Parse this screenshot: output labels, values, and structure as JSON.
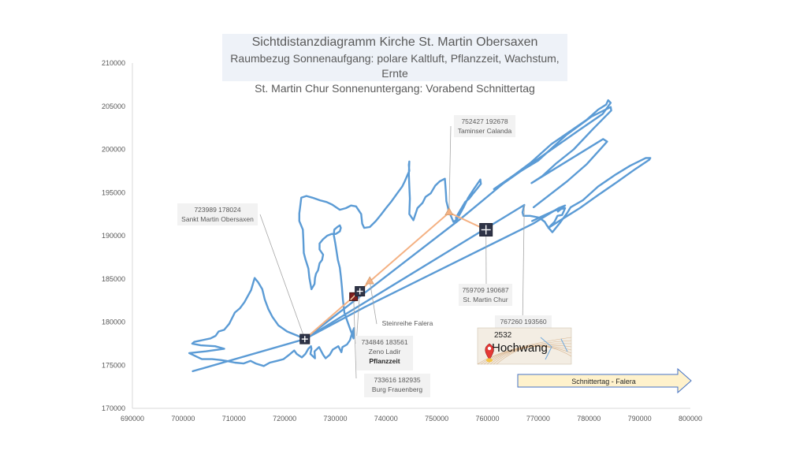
{
  "chart_data": {
    "type": "scatter",
    "title": "Sichtdistanzdiagramm Kirche St. Martin Obersaxen",
    "subtitle_lines": [
      "Raumbezug Sonnenaufgang: polare Kaltluft, Pflanzzeit, Wachstum, Ernte",
      "St. Martin Chur Sonnenuntergang: Vorabend Schnittertag"
    ],
    "xlabel": "",
    "ylabel": "",
    "xlim": [
      690000,
      800000
    ],
    "ylim": [
      170000,
      210000
    ],
    "x_ticks": [
      690000,
      700000,
      710000,
      720000,
      730000,
      740000,
      750000,
      760000,
      770000,
      780000,
      790000,
      800000
    ],
    "y_ticks": [
      170000,
      175000,
      180000,
      185000,
      190000,
      195000,
      200000,
      205000,
      210000
    ],
    "x_tick_labels": [
      "690000",
      "700000",
      "710000",
      "720000",
      "730000",
      "740000",
      "750000",
      "760000",
      "770000",
      "780000",
      "790000",
      "800000"
    ],
    "y_tick_labels": [
      "170000",
      "175000",
      "180000",
      "185000",
      "190000",
      "195000",
      "200000",
      "205000",
      "210000"
    ],
    "grid": false,
    "colors": {
      "horizon": "#5b9bd5",
      "route": "#f4b183",
      "axis": "#d9d9d9",
      "text": "#595959",
      "arrow_fill": "#fff2cc",
      "arrow_stroke": "#4472c4"
    },
    "series": [
      {
        "kind": "horizon-outline",
        "points": [
          [
            723989,
            178024
          ],
          [
            722600,
            178400
          ],
          [
            720500,
            178900
          ],
          [
            718800,
            179600
          ],
          [
            717600,
            180600
          ],
          [
            716800,
            181500
          ],
          [
            716100,
            182600
          ],
          [
            715600,
            183800
          ],
          [
            714800,
            184600
          ],
          [
            714100,
            185100
          ],
          [
            713400,
            183700
          ],
          [
            712100,
            182300
          ],
          [
            711200,
            181600
          ],
          [
            710200,
            181100
          ],
          [
            709100,
            179800
          ],
          [
            708100,
            179100
          ],
          [
            707000,
            178900
          ],
          [
            706400,
            178400
          ],
          [
            705400,
            178100
          ],
          [
            703800,
            177900
          ],
          [
            702200,
            177700
          ],
          [
            701800,
            177500
          ],
          [
            703500,
            177300
          ],
          [
            706300,
            177200
          ],
          [
            708100,
            176900
          ],
          [
            704500,
            176600
          ],
          [
            701200,
            176400
          ],
          [
            703700,
            175700
          ],
          [
            705700,
            175700
          ],
          [
            707400,
            175600
          ],
          [
            708500,
            175500
          ],
          [
            710200,
            175300
          ],
          [
            711900,
            175200
          ],
          [
            713300,
            175500
          ],
          [
            714300,
            175200
          ],
          [
            715900,
            174900
          ],
          [
            717100,
            175300
          ],
          [
            718500,
            175500
          ],
          [
            719800,
            175700
          ],
          [
            720900,
            176200
          ],
          [
            721900,
            176700
          ],
          [
            722400,
            176300
          ],
          [
            723400,
            175900
          ],
          [
            724100,
            176300
          ],
          [
            724700,
            176900
          ],
          [
            725200,
            177200
          ],
          [
            725300,
            176900
          ],
          [
            725100,
            176300
          ],
          [
            726000,
            175800
          ],
          [
            725900,
            176600
          ],
          [
            726800,
            177100
          ],
          [
            727600,
            176200
          ],
          [
            728100,
            175800
          ],
          [
            728900,
            176200
          ],
          [
            729500,
            176800
          ],
          [
            730600,
            177200
          ],
          [
            731200,
            176500
          ],
          [
            731400,
            177100
          ],
          [
            732300,
            177400
          ],
          [
            732900,
            177900
          ],
          [
            733300,
            178700
          ],
          [
            733700,
            179300
          ],
          [
            733600,
            178100
          ],
          [
            732300,
            180200
          ],
          [
            731800,
            181100
          ],
          [
            731500,
            182600
          ],
          [
            731300,
            184100
          ],
          [
            731100,
            185300
          ],
          [
            730900,
            186300
          ],
          [
            730500,
            187200
          ],
          [
            730200,
            188400
          ],
          [
            730000,
            189100
          ],
          [
            729700,
            190100
          ],
          [
            729800,
            190700
          ],
          [
            730400,
            191000
          ],
          [
            730900,
            191200
          ],
          [
            731100,
            190900
          ],
          [
            730900,
            190500
          ],
          [
            730100,
            190200
          ],
          [
            729300,
            190200
          ],
          [
            728400,
            190000
          ],
          [
            727600,
            189600
          ],
          [
            726900,
            189100
          ],
          [
            726900,
            188400
          ],
          [
            727600,
            187800
          ],
          [
            727400,
            187200
          ],
          [
            726900,
            186800
          ],
          [
            726600,
            186000
          ],
          [
            726200,
            185600
          ],
          [
            726000,
            185100
          ],
          [
            725900,
            184400
          ],
          [
            725300,
            183800
          ],
          [
            724900,
            185100
          ],
          [
            724700,
            186200
          ],
          [
            724100,
            187300
          ],
          [
            723800,
            188000
          ],
          [
            723700,
            189600
          ],
          [
            723600,
            190700
          ],
          [
            722900,
            191700
          ],
          [
            722900,
            192600
          ],
          [
            723000,
            193000
          ],
          [
            723300,
            194400
          ],
          [
            724300,
            194600
          ],
          [
            725500,
            194400
          ],
          [
            727000,
            194100
          ],
          [
            728300,
            193900
          ],
          [
            729400,
            193600
          ],
          [
            730900,
            193000
          ],
          [
            732100,
            193200
          ],
          [
            733100,
            193500
          ],
          [
            734100,
            193400
          ],
          [
            735100,
            192500
          ],
          [
            735300,
            191400
          ],
          [
            735700,
            190900
          ],
          [
            736800,
            191000
          ],
          [
            738000,
            191700
          ],
          [
            739100,
            192500
          ],
          [
            740000,
            193200
          ],
          [
            741100,
            194000
          ],
          [
            742200,
            194900
          ],
          [
            743200,
            195700
          ],
          [
            743700,
            196300
          ],
          [
            744200,
            197000
          ],
          [
            744600,
            197500
          ],
          [
            744500,
            198200
          ],
          [
            744600,
            198600
          ],
          [
            744500,
            197100
          ],
          [
            744600,
            195700
          ],
          [
            744700,
            194300
          ],
          [
            744600,
            192500
          ],
          [
            745400,
            191800
          ],
          [
            746200,
            193200
          ],
          [
            747200,
            193800
          ],
          [
            747800,
            194500
          ],
          [
            748800,
            194900
          ],
          [
            749700,
            195800
          ],
          [
            750600,
            196300
          ],
          [
            751600,
            196600
          ],
          [
            751700,
            195900
          ],
          [
            751800,
            195000
          ],
          [
            751900,
            194000
          ],
          [
            752200,
            193300
          ],
          [
            752427,
            192678
          ],
          [
            752700,
            192400
          ],
          [
            753300,
            191600
          ],
          [
            754000,
            191900
          ],
          [
            755300,
            193300
          ],
          [
            756200,
            194400
          ],
          [
            757300,
            195400
          ],
          [
            758600,
            196500
          ],
          [
            758700,
            196000
          ],
          [
            757900,
            195400
          ],
          [
            757200,
            194900
          ],
          [
            756400,
            194300
          ],
          [
            755600,
            193900
          ],
          [
            754700,
            193000
          ],
          [
            753800,
            192100
          ],
          [
            753900,
            191600
          ]
        ]
      },
      {
        "kind": "sightline",
        "points": [
          [
            723989,
            178024
          ],
          [
            753900,
            191600
          ],
          [
            754800,
            192000
          ],
          [
            763000,
            196000
          ],
          [
            770000,
            198900
          ],
          [
            778000,
            202200
          ],
          [
            782700,
            204100
          ],
          [
            784300,
            205400
          ],
          [
            783800,
            205700
          ],
          [
            783400,
            205200
          ],
          [
            781800,
            204600
          ],
          [
            779500,
            203400
          ],
          [
            776800,
            202300
          ],
          [
            772600,
            200600
          ],
          [
            768600,
            198500
          ],
          [
            765200,
            197000
          ],
          [
            761300,
            195400
          ]
        ]
      },
      {
        "kind": "horizon-east",
        "points": [
          [
            761300,
            195400
          ],
          [
            765200,
            197000
          ],
          [
            770000,
            198700
          ],
          [
            775600,
            201700
          ],
          [
            780500,
            203800
          ],
          [
            784300,
            204900
          ],
          [
            784400,
            204500
          ],
          [
            780700,
            202300
          ],
          [
            777000,
            200000
          ],
          [
            773400,
            198300
          ],
          [
            770800,
            196900
          ],
          [
            768700,
            196100
          ],
          [
            782800,
            201200
          ],
          [
            783600,
            200900
          ],
          [
            779600,
            198300
          ],
          [
            775700,
            196300
          ],
          [
            771300,
            194300
          ],
          [
            769100,
            193300
          ]
        ]
      },
      {
        "kind": "horizon-far-east",
        "points": [
          [
            723989,
            178024
          ],
          [
            767260,
            193560
          ],
          [
            766900,
            192700
          ],
          [
            767100,
            192300
          ],
          [
            768400,
            192300
          ],
          [
            770200,
            192100
          ],
          [
            771300,
            191600
          ],
          [
            771700,
            191200
          ],
          [
            772200,
            190800
          ],
          [
            772800,
            190400
          ],
          [
            774300,
            191500
          ],
          [
            775800,
            192700
          ],
          [
            776400,
            193300
          ],
          [
            778800,
            194100
          ],
          [
            781800,
            195700
          ],
          [
            785300,
            197100
          ],
          [
            788100,
            198100
          ],
          [
            791200,
            199000
          ],
          [
            792100,
            199000
          ],
          [
            791900,
            198800
          ],
          [
            789100,
            197700
          ],
          [
            785500,
            196200
          ],
          [
            781800,
            194700
          ],
          [
            778200,
            193200
          ],
          [
            774400,
            191800
          ],
          [
            772000,
            190900
          ],
          [
            773200,
            191600
          ],
          [
            773800,
            192300
          ],
          [
            774700,
            192400
          ],
          [
            775100,
            192900
          ],
          [
            775300,
            193200
          ],
          [
            773200,
            192900
          ],
          [
            770600,
            192200
          ],
          [
            768800,
            191700
          ]
        ]
      },
      {
        "kind": "sightline-southwest",
        "points": [
          [
            701900,
            174300
          ],
          [
            723989,
            178024
          ]
        ]
      },
      {
        "kind": "sightline-southeast",
        "points": [
          [
            723989,
            178024
          ],
          [
            735700,
            181700
          ],
          [
            769000,
            191400
          ],
          [
            774000,
            193200
          ],
          [
            775300,
            193500
          ],
          [
            773900,
            192800
          ]
        ]
      },
      {
        "kind": "route",
        "points": [
          [
            723989,
            178024
          ],
          [
            733616,
            182935
          ],
          [
            734846,
            183561
          ],
          [
            736800,
            184700
          ],
          [
            752427,
            192678
          ],
          [
            759709,
            190687
          ]
        ]
      }
    ],
    "points": [
      {
        "name": "Sankt Martin Obersaxen",
        "x": 723989,
        "y": 178024,
        "label_lines": [
          "723989 178024",
          "Sankt Martin Obersaxen"
        ],
        "marker": "church"
      },
      {
        "name": "Burg Frauenberg",
        "x": 733616,
        "y": 182935,
        "label_lines": [
          "733616 182935",
          "Burg Frauenberg"
        ],
        "marker": "castle"
      },
      {
        "name": "Zeno Ladir",
        "x": 734846,
        "y": 183561,
        "label_lines": [
          "734846 183561",
          "Zeno Ladir",
          "Pflanzzeit"
        ],
        "marker": "church"
      },
      {
        "name": "Steinreihe Falera",
        "x": 736800,
        "y": 184700,
        "label_lines": [
          "Steinreihe Falera"
        ],
        "marker": "triangle"
      },
      {
        "name": "Taminser Calanda",
        "x": 752427,
        "y": 192678,
        "label_lines": [
          "752427 192678",
          "Taminser Calanda"
        ],
        "marker": "triangle"
      },
      {
        "name": "St. Martin Chur",
        "x": 759709,
        "y": 190687,
        "label_lines": [
          "759709 190687",
          "St. Martin Chur"
        ],
        "marker": "church"
      },
      {
        "name": "Hochwang",
        "x": 767260,
        "y": 193560,
        "label_lines": [
          "767260 193560"
        ],
        "marker": "none"
      }
    ],
    "map_inset": {
      "label": "Hochwang",
      "elevation": "2532"
    },
    "annotation_arrow": "Schnittertag - Falera"
  }
}
